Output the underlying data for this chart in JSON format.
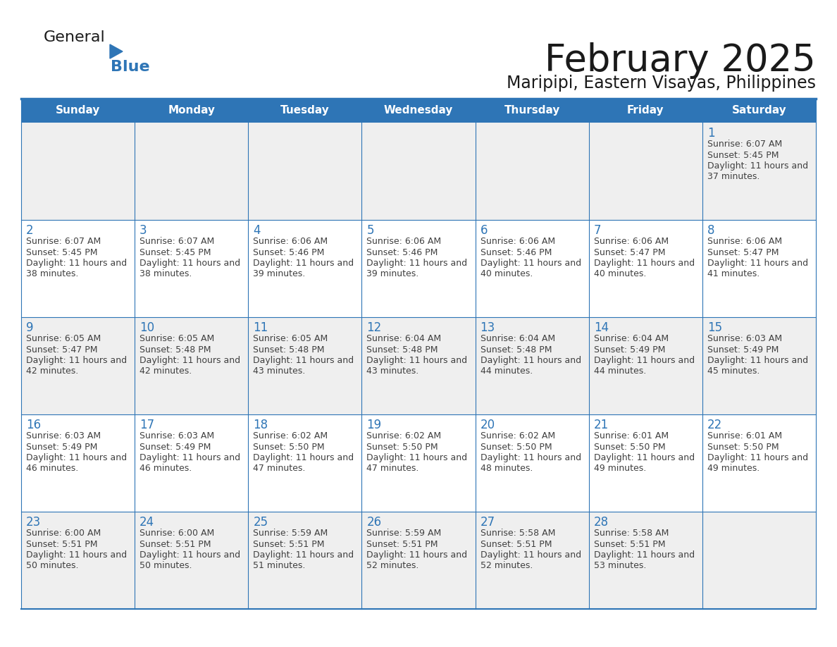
{
  "title": "February 2025",
  "subtitle": "Maripipi, Eastern Visayas, Philippines",
  "header_bg": "#2E75B6",
  "header_text_color": "#FFFFFF",
  "day_names": [
    "Sunday",
    "Monday",
    "Tuesday",
    "Wednesday",
    "Thursday",
    "Friday",
    "Saturday"
  ],
  "cell_bg_row0": "#EFEFEF",
  "cell_bg_row1": "#FFFFFF",
  "cell_bg_row2": "#EFEFEF",
  "cell_bg_row3": "#FFFFFF",
  "cell_bg_row4": "#EFEFEF",
  "border_color": "#2E75B6",
  "title_color": "#1A1A1A",
  "subtitle_color": "#1A1A1A",
  "day_number_color": "#2E75B6",
  "cell_text_color": "#404040",
  "logo_general_color": "#1A1A1A",
  "logo_blue_color": "#2E75B6",
  "calendar_data": [
    [
      null,
      null,
      null,
      null,
      null,
      null,
      {
        "day": 1,
        "sunrise": "6:07 AM",
        "sunset": "5:45 PM",
        "daylight": "11 hours and 37 minutes."
      }
    ],
    [
      {
        "day": 2,
        "sunrise": "6:07 AM",
        "sunset": "5:45 PM",
        "daylight": "11 hours and 38 minutes."
      },
      {
        "day": 3,
        "sunrise": "6:07 AM",
        "sunset": "5:45 PM",
        "daylight": "11 hours and 38 minutes."
      },
      {
        "day": 4,
        "sunrise": "6:06 AM",
        "sunset": "5:46 PM",
        "daylight": "11 hours and 39 minutes."
      },
      {
        "day": 5,
        "sunrise": "6:06 AM",
        "sunset": "5:46 PM",
        "daylight": "11 hours and 39 minutes."
      },
      {
        "day": 6,
        "sunrise": "6:06 AM",
        "sunset": "5:46 PM",
        "daylight": "11 hours and 40 minutes."
      },
      {
        "day": 7,
        "sunrise": "6:06 AM",
        "sunset": "5:47 PM",
        "daylight": "11 hours and 40 minutes."
      },
      {
        "day": 8,
        "sunrise": "6:06 AM",
        "sunset": "5:47 PM",
        "daylight": "11 hours and 41 minutes."
      }
    ],
    [
      {
        "day": 9,
        "sunrise": "6:05 AM",
        "sunset": "5:47 PM",
        "daylight": "11 hours and 42 minutes."
      },
      {
        "day": 10,
        "sunrise": "6:05 AM",
        "sunset": "5:48 PM",
        "daylight": "11 hours and 42 minutes."
      },
      {
        "day": 11,
        "sunrise": "6:05 AM",
        "sunset": "5:48 PM",
        "daylight": "11 hours and 43 minutes."
      },
      {
        "day": 12,
        "sunrise": "6:04 AM",
        "sunset": "5:48 PM",
        "daylight": "11 hours and 43 minutes."
      },
      {
        "day": 13,
        "sunrise": "6:04 AM",
        "sunset": "5:48 PM",
        "daylight": "11 hours and 44 minutes."
      },
      {
        "day": 14,
        "sunrise": "6:04 AM",
        "sunset": "5:49 PM",
        "daylight": "11 hours and 44 minutes."
      },
      {
        "day": 15,
        "sunrise": "6:03 AM",
        "sunset": "5:49 PM",
        "daylight": "11 hours and 45 minutes."
      }
    ],
    [
      {
        "day": 16,
        "sunrise": "6:03 AM",
        "sunset": "5:49 PM",
        "daylight": "11 hours and 46 minutes."
      },
      {
        "day": 17,
        "sunrise": "6:03 AM",
        "sunset": "5:49 PM",
        "daylight": "11 hours and 46 minutes."
      },
      {
        "day": 18,
        "sunrise": "6:02 AM",
        "sunset": "5:50 PM",
        "daylight": "11 hours and 47 minutes."
      },
      {
        "day": 19,
        "sunrise": "6:02 AM",
        "sunset": "5:50 PM",
        "daylight": "11 hours and 47 minutes."
      },
      {
        "day": 20,
        "sunrise": "6:02 AM",
        "sunset": "5:50 PM",
        "daylight": "11 hours and 48 minutes."
      },
      {
        "day": 21,
        "sunrise": "6:01 AM",
        "sunset": "5:50 PM",
        "daylight": "11 hours and 49 minutes."
      },
      {
        "day": 22,
        "sunrise": "6:01 AM",
        "sunset": "5:50 PM",
        "daylight": "11 hours and 49 minutes."
      }
    ],
    [
      {
        "day": 23,
        "sunrise": "6:00 AM",
        "sunset": "5:51 PM",
        "daylight": "11 hours and 50 minutes."
      },
      {
        "day": 24,
        "sunrise": "6:00 AM",
        "sunset": "5:51 PM",
        "daylight": "11 hours and 50 minutes."
      },
      {
        "day": 25,
        "sunrise": "5:59 AM",
        "sunset": "5:51 PM",
        "daylight": "11 hours and 51 minutes."
      },
      {
        "day": 26,
        "sunrise": "5:59 AM",
        "sunset": "5:51 PM",
        "daylight": "11 hours and 52 minutes."
      },
      {
        "day": 27,
        "sunrise": "5:58 AM",
        "sunset": "5:51 PM",
        "daylight": "11 hours and 52 minutes."
      },
      {
        "day": 28,
        "sunrise": "5:58 AM",
        "sunset": "5:51 PM",
        "daylight": "11 hours and 53 minutes."
      },
      null
    ]
  ]
}
